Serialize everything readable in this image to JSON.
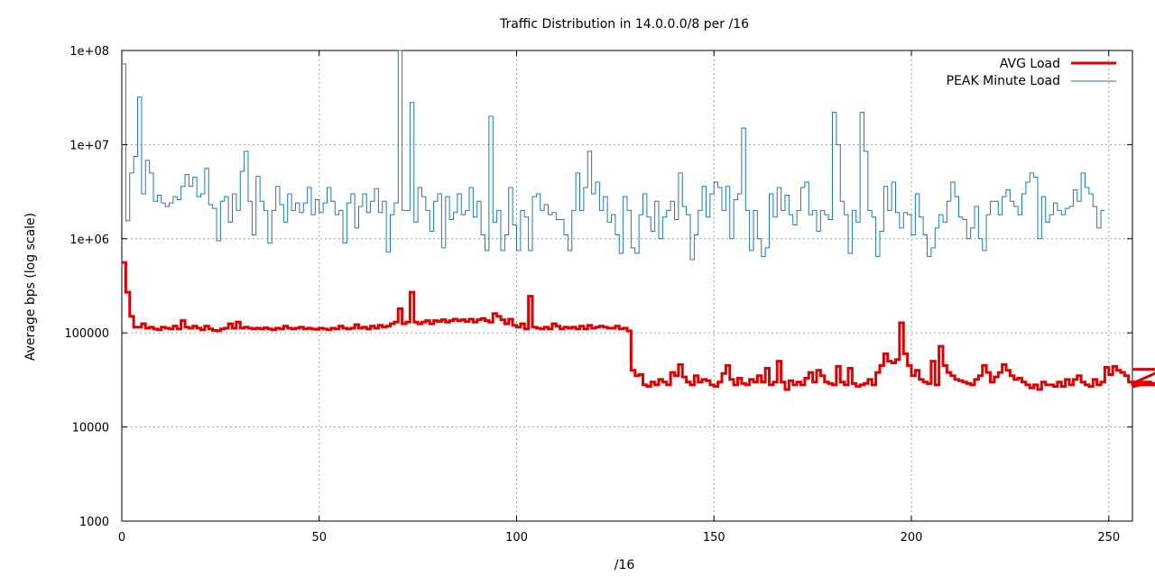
{
  "chart_data": {
    "type": "line",
    "title": "Traffic Distribution in 14.0.0.0/8 per /16",
    "xlabel": "/16",
    "ylabel": "Average bps (log scale)",
    "xlim": [
      0,
      256
    ],
    "ylim": [
      1000,
      100000000
    ],
    "yscale": "log",
    "grid": true,
    "legend_position": "top-right",
    "x_ticks": [
      "0",
      "50",
      "100",
      "150",
      "200",
      "250"
    ],
    "y_ticks": [
      "1000",
      "10000",
      "100000",
      "1e+06",
      "1e+07",
      "1e+08"
    ],
    "x_tick_values": [
      0,
      50,
      100,
      150,
      200,
      250
    ],
    "y_tick_values": [
      1000,
      10000,
      100000,
      1000000,
      10000000,
      100000000
    ],
    "series": [
      {
        "name": "AVG Load",
        "color": "#e00000",
        "values": [
          560000,
          270000,
          150000,
          115000,
          115000,
          125000,
          112000,
          115000,
          110000,
          108000,
          115000,
          112000,
          110000,
          118000,
          110000,
          135000,
          115000,
          112000,
          118000,
          112000,
          108000,
          118000,
          110000,
          106000,
          105000,
          110000,
          112000,
          125000,
          112000,
          130000,
          112000,
          115000,
          112000,
          110000,
          112000,
          110000,
          113000,
          110000,
          108000,
          112000,
          110000,
          118000,
          112000,
          110000,
          112000,
          115000,
          110000,
          112000,
          110000,
          109000,
          112000,
          110000,
          108000,
          112000,
          110000,
          118000,
          112000,
          110000,
          112000,
          122000,
          112000,
          115000,
          110000,
          118000,
          112000,
          120000,
          115000,
          118000,
          125000,
          130000,
          180000,
          125000,
          130000,
          270000,
          130000,
          125000,
          130000,
          135000,
          125000,
          135000,
          132000,
          138000,
          130000,
          135000,
          140000,
          135000,
          138000,
          132000,
          140000,
          130000,
          138000,
          142000,
          135000,
          130000,
          160000,
          150000,
          138000,
          125000,
          140000,
          120000,
          115000,
          125000,
          110000,
          245000,
          115000,
          112000,
          110000,
          115000,
          110000,
          125000,
          118000,
          110000,
          115000,
          112000,
          115000,
          110000,
          118000,
          110000,
          120000,
          112000,
          115000,
          118000,
          115000,
          112000,
          112000,
          118000,
          110000,
          112000,
          105000,
          40000,
          35000,
          36000,
          28000,
          27000,
          30000,
          28000,
          32000,
          30000,
          28000,
          38000,
          35000,
          46000,
          34000,
          30000,
          28000,
          35000,
          30000,
          32000,
          31000,
          28000,
          27000,
          30000,
          37000,
          45000,
          32000,
          28000,
          33000,
          29000,
          28000,
          32000,
          30000,
          35000,
          30000,
          42000,
          28000,
          30000,
          50000,
          30000,
          25000,
          31000,
          28000,
          30000,
          28000,
          33000,
          38000,
          30000,
          40000,
          35000,
          30000,
          29000,
          28000,
          44000,
          30000,
          28000,
          42000,
          29000,
          27000,
          28000,
          29000,
          32000,
          28000,
          38000,
          45000,
          60000,
          50000,
          48000,
          52000,
          128000,
          60000,
          45000,
          35000,
          40000,
          32000,
          30000,
          29000,
          50000,
          28000,
          72000,
          45000,
          38000,
          35000,
          32000,
          31000,
          30000,
          29000,
          28000,
          32000,
          35000,
          45000,
          38000,
          30000,
          34000,
          38000,
          46000,
          40000,
          35000,
          32000,
          33000,
          30000,
          28000,
          26000,
          28000,
          25000,
          30000,
          28000,
          28000,
          27000,
          30000,
          27000,
          32000,
          28000,
          32000,
          35000,
          30000,
          28000,
          27000,
          32000,
          28000,
          30000,
          43000,
          36000,
          44000,
          40000,
          38000,
          35000,
          30000,
          28000,
          27000,
          28000,
          30000,
          29000,
          30000,
          28000,
          29000,
          41000
        ]
      },
      {
        "name": "PEAK Minute Load",
        "color": "#1f77c0",
        "values": [
          72000000,
          1550000,
          5000000,
          7500000,
          32000000,
          3000000,
          6800000,
          5000000,
          2500000,
          2900000,
          2400000,
          2200000,
          2400000,
          2800000,
          2600000,
          3600000,
          4800000,
          3600000,
          4500000,
          2800000,
          3000000,
          5600000,
          2300000,
          2100000,
          950000,
          2500000,
          2800000,
          1500000,
          3000000,
          2000000,
          5200000,
          8500000,
          2500000,
          1100000,
          4600000,
          2500000,
          2000000,
          900000,
          2000000,
          3600000,
          2300000,
          1500000,
          3000000,
          2000000,
          2400000,
          1900000,
          2400000,
          3500000,
          1800000,
          2600000,
          1900000,
          2400000,
          3500000,
          2500000,
          1800000,
          2000000,
          900000,
          2400000,
          3000000,
          1300000,
          2200000,
          3000000,
          1900000,
          2500000,
          3400000,
          1900000,
          2500000,
          720000,
          1800000,
          2400000,
          100000000,
          2000000,
          2000000,
          28000000,
          1500000,
          3500000,
          2800000,
          2000000,
          1200000,
          2500000,
          3000000,
          800000,
          2800000,
          1600000,
          1900000,
          3000000,
          1800000,
          2000000,
          3500000,
          1700000,
          2500000,
          1100000,
          750000,
          20000000,
          1500000,
          2000000,
          750000,
          1100000,
          3500000,
          1400000,
          750000,
          2000000,
          1700000,
          750000,
          2800000,
          3000000,
          2000000,
          2300000,
          1800000,
          1900000,
          1600000,
          1600000,
          1100000,
          750000,
          2000000,
          5000000,
          2000000,
          3500000,
          8500000,
          3000000,
          4000000,
          2000000,
          2800000,
          1500000,
          1800000,
          1100000,
          700000,
          2800000,
          2000000,
          800000,
          700000,
          1800000,
          3000000,
          1700000,
          1200000,
          2500000,
          1000000,
          1700000,
          2000000,
          2500000,
          1600000,
          5000000,
          2200000,
          1800000,
          600000,
          1100000,
          2000000,
          3600000,
          1700000,
          3000000,
          4000000,
          3500000,
          2000000,
          3600000,
          1000000,
          2600000,
          3000000,
          15000000,
          2000000,
          750000,
          2000000,
          1000000,
          650000,
          800000,
          3000000,
          1700000,
          3500000,
          2000000,
          2900000,
          1800000,
          1400000,
          2000000,
          3500000,
          4000000,
          1800000,
          2000000,
          1200000,
          2000000,
          1800000,
          1600000,
          22000000,
          10000000,
          2500000,
          1800000,
          700000,
          2000000,
          1500000,
          22000000,
          8500000,
          2000000,
          1700000,
          650000,
          1200000,
          3600000,
          2000000,
          4000000,
          1900000,
          1300000,
          1900000,
          1800000,
          1100000,
          3000000,
          1700000,
          1100000,
          650000,
          800000,
          1300000,
          1800000,
          1500000,
          2500000,
          4000000,
          2800000,
          1700000,
          1600000,
          1000000,
          1300000,
          2200000,
          1000000,
          750000,
          1800000,
          2500000,
          2500000,
          1800000,
          2800000,
          3300000,
          2500000,
          2200000,
          1800000,
          3000000,
          4000000,
          5000000,
          4500000,
          1000000,
          2800000,
          1500000,
          1800000,
          2400000,
          2000000,
          1800000,
          2100000,
          2200000,
          3300000,
          2500000,
          5000000,
          3500000,
          3000000,
          2200000,
          1300000,
          2000000
        ]
      }
    ]
  }
}
